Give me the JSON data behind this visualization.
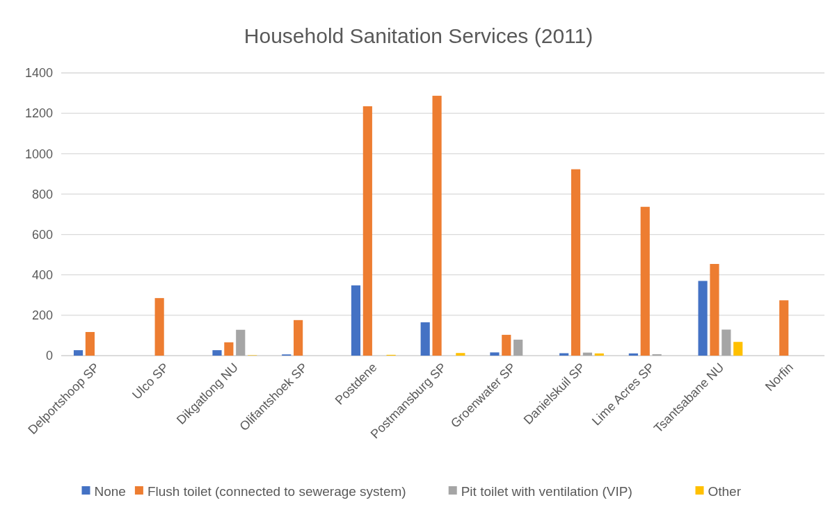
{
  "chart_data": {
    "type": "bar",
    "title": "Household Sanitation Services (2011)",
    "categories": [
      "Delportshoop SP",
      "Ulco SP",
      "Dikgatlong NU",
      "Olifantshoek SP",
      "Postdene",
      "Postmansburg SP",
      "Groenwater SP",
      "Danielskuil SP",
      "Lime Acres SP",
      "Tsantsabane NU",
      "Norfin"
    ],
    "series": [
      {
        "name": "None",
        "color": "#4472c4",
        "values": [
          27,
          0,
          27,
          6,
          348,
          165,
          16,
          12,
          11,
          370,
          0
        ]
      },
      {
        "name": "Flush toilet (connected to sewerage system)",
        "color": "#ed7d31",
        "values": [
          117,
          285,
          66,
          176,
          1235,
          1287,
          103,
          923,
          737,
          454,
          274
        ]
      },
      {
        "name": "Pit toilet with ventilation (VIP)",
        "color": "#a5a5a5",
        "values": [
          0,
          0,
          128,
          0,
          0,
          0,
          79,
          15,
          7,
          129,
          0
        ]
      },
      {
        "name": "Other",
        "color": "#ffc000",
        "values": [
          0,
          0,
          2,
          0,
          4,
          13,
          0,
          11,
          0,
          68,
          0
        ]
      }
    ],
    "ylim": [
      0,
      1400
    ],
    "yticks": [
      0,
      200,
      400,
      600,
      800,
      1000,
      1200,
      1400
    ],
    "grid": "y",
    "legend": "bottom"
  }
}
